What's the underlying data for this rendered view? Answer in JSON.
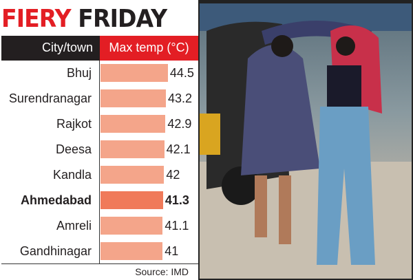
{
  "chart_data": {
    "type": "bar",
    "orientation": "horizontal",
    "title": "FIERY FRIDAY",
    "title_parts": [
      "FIERY",
      "FRIDAY"
    ],
    "column_headers": [
      "City/town",
      "Max temp (°C)"
    ],
    "categories": [
      "Bhuj",
      "Surendranagar",
      "Rajkot",
      "Deesa",
      "Kandla",
      "Ahmedabad",
      "Amreli",
      "Gandhinagar"
    ],
    "values": [
      44.5,
      43.2,
      42.9,
      42.1,
      42,
      41.3,
      41.1,
      41
    ],
    "value_labels": [
      "44.5",
      "43.2",
      "42.9",
      "42.1",
      "42",
      "41.3",
      "41.1",
      "41"
    ],
    "highlight": "Ahmedabad",
    "source": "Source: IMD",
    "colors": {
      "title_accent": "#e31e24",
      "title_dark": "#231f20",
      "bar": "#f4a58a",
      "bar_highlight": "#f07a5a",
      "header_left": "#231f20",
      "header_right": "#e31e24"
    }
  },
  "photo": {
    "description_icon": "photo-two-women-shading-from-sun"
  }
}
